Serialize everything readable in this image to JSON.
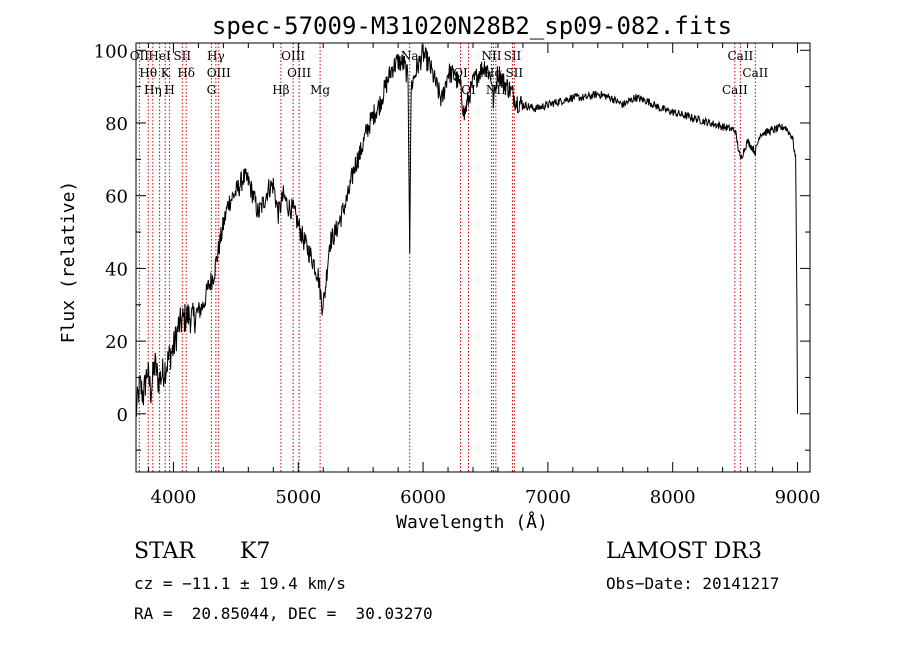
{
  "chart_data": {
    "type": "line",
    "title": "spec-57009-M31020N28B2_sp09-082.fits",
    "xlabel": "Wavelength (Å)",
    "ylabel": "Flux (relative)",
    "xlim": [
      3700,
      9100
    ],
    "ylim": [
      -16,
      102
    ],
    "xticks": [
      4000,
      5000,
      6000,
      7000,
      8000,
      9000
    ],
    "yticks": [
      0,
      20,
      40,
      60,
      80,
      100
    ],
    "grid": false,
    "series": [
      {
        "name": "flux",
        "x": [
          3700,
          3730,
          3760,
          3790,
          3820,
          3850,
          3880,
          3910,
          3940,
          3970,
          4000,
          4040,
          4080,
          4120,
          4160,
          4200,
          4240,
          4280,
          4320,
          4360,
          4400,
          4440,
          4480,
          4520,
          4560,
          4600,
          4640,
          4680,
          4720,
          4760,
          4800,
          4840,
          4880,
          4920,
          4960,
          5000,
          5040,
          5080,
          5120,
          5160,
          5190,
          5210,
          5250,
          5300,
          5350,
          5400,
          5450,
          5500,
          5550,
          5600,
          5650,
          5700,
          5750,
          5800,
          5850,
          5880,
          5893,
          5905,
          5950,
          6000,
          6050,
          6100,
          6150,
          6200,
          6250,
          6300,
          6330,
          6350,
          6400,
          6450,
          6500,
          6550,
          6563,
          6600,
          6650,
          6700,
          6750,
          6800,
          6900,
          7000,
          7100,
          7200,
          7300,
          7400,
          7500,
          7600,
          7700,
          7800,
          7900,
          8000,
          8100,
          8200,
          8300,
          8400,
          8500,
          8542,
          8600,
          8662,
          8700,
          8800,
          8900,
          8960,
          8985,
          8995,
          9000
        ],
        "y": [
          0,
          8,
          5,
          12,
          6,
          14,
          9,
          11,
          13,
          16,
          18,
          24,
          26,
          27,
          26,
          28,
          30,
          35,
          38,
          45,
          52,
          58,
          60,
          62,
          65,
          64,
          60,
          55,
          58,
          62,
          63,
          55,
          60,
          57,
          56,
          52,
          48,
          45,
          42,
          38,
          30,
          32,
          47,
          50,
          55,
          60,
          68,
          72,
          78,
          82,
          85,
          90,
          95,
          97,
          96,
          92,
          46,
          90,
          95,
          99,
          96,
          91,
          86,
          94,
          93,
          90,
          82,
          85,
          91,
          94,
          96,
          92,
          86,
          94,
          91,
          89,
          86,
          85,
          84,
          85,
          86,
          87,
          87,
          88,
          87,
          85,
          87,
          86,
          84,
          83,
          82,
          81,
          80,
          79,
          78,
          70,
          75,
          72,
          77,
          78,
          79,
          76,
          70,
          30,
          0
        ]
      }
    ],
    "spectral_lines": [
      {
        "wavelength": 3727,
        "label": "OII"
      },
      {
        "wavelength": 3798,
        "label": "Hθ"
      },
      {
        "wavelength": 3835,
        "label": "Hη"
      },
      {
        "wavelength": 3889,
        "label": "HeI"
      },
      {
        "wavelength": 3934,
        "label": "K"
      },
      {
        "wavelength": 3969,
        "label": "H"
      },
      {
        "wavelength": 4071,
        "label": "SII"
      },
      {
        "wavelength": 4102,
        "label": "Hδ"
      },
      {
        "wavelength": 4304,
        "label": "G"
      },
      {
        "wavelength": 4340,
        "label": "Hγ"
      },
      {
        "wavelength": 4363,
        "label": "OIII"
      },
      {
        "wavelength": 4861,
        "label": "Hβ"
      },
      {
        "wavelength": 4959,
        "label": "OIII"
      },
      {
        "wavelength": 5007,
        "label": "OIII"
      },
      {
        "wavelength": 5175,
        "label": "Mg"
      },
      {
        "wavelength": 5893,
        "label": "Na"
      },
      {
        "wavelength": 6300,
        "label": "OI"
      },
      {
        "wavelength": 6364,
        "label": "OI"
      },
      {
        "wavelength": 6548,
        "label": "NII"
      },
      {
        "wavelength": 6563,
        "label": "Hα"
      },
      {
        "wavelength": 6583,
        "label": "NII"
      },
      {
        "wavelength": 6716,
        "label": "SII"
      },
      {
        "wavelength": 6731,
        "label": "SII"
      },
      {
        "wavelength": 8498,
        "label": "CaII"
      },
      {
        "wavelength": 8542,
        "label": "CaII"
      },
      {
        "wavelength": 8662,
        "label": "CaII"
      }
    ],
    "line_color": "#000000",
    "marker_color": "#cc0000"
  },
  "info": {
    "object_class": "STAR",
    "subclass": "K7",
    "survey": "LAMOST DR3",
    "cz": "cz = −11.1 ± 19.4 km/s",
    "obs_date": "Obs−Date: 20141217",
    "coords": "RA =  20.85044, DEC =  30.03270"
  }
}
